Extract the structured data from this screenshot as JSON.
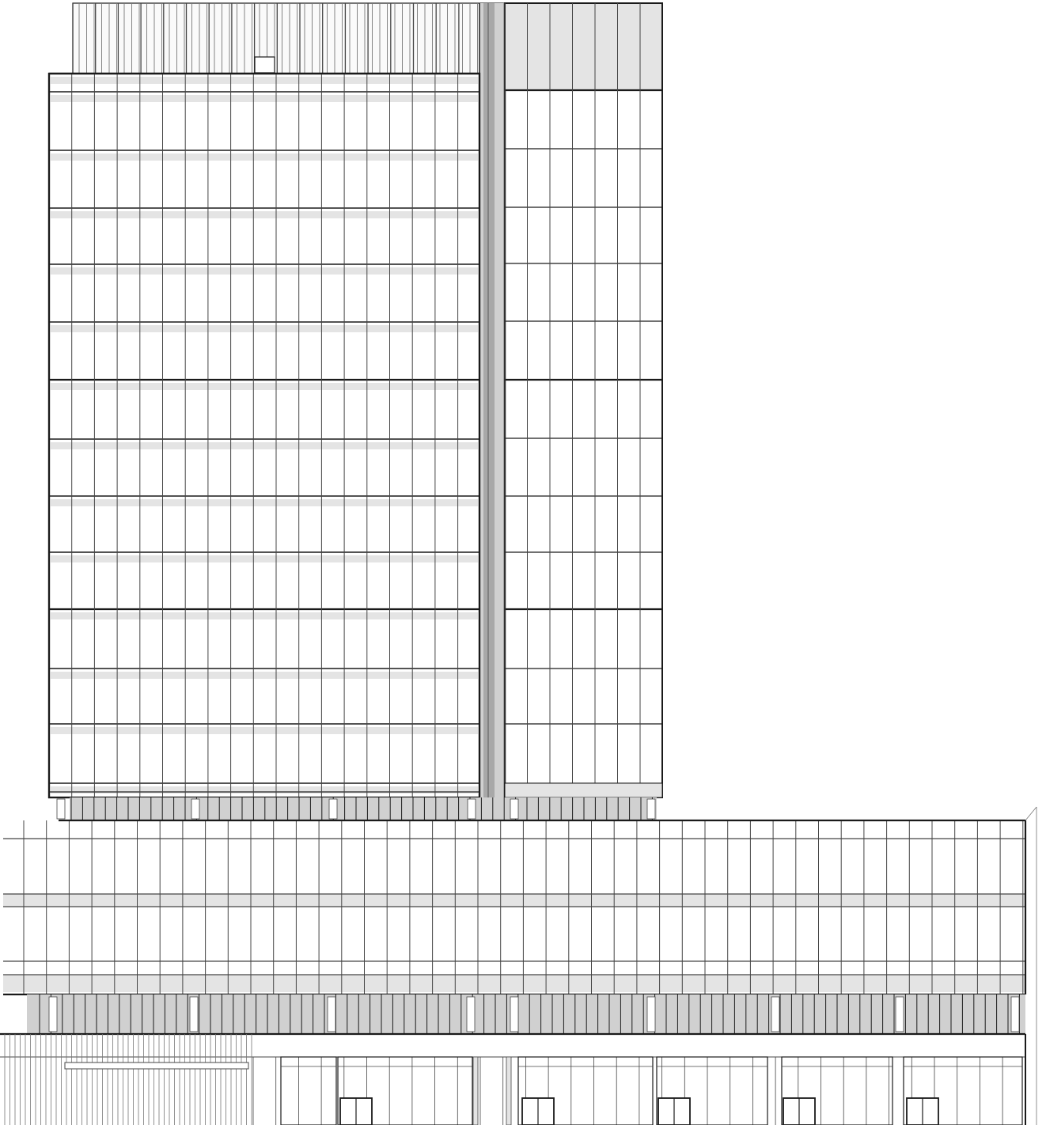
{
  "drawing": {
    "subject": "",
    "view": "",
    "colors": {
      "background": "#ffffff",
      "line": "#1a1a1a",
      "mullion": "#444444",
      "thin_mullion": "#777777",
      "spandrel": "#e4e4e4",
      "recess": "#d0d0d0",
      "deep_shadow": "#a8a8a8"
    }
  }
}
